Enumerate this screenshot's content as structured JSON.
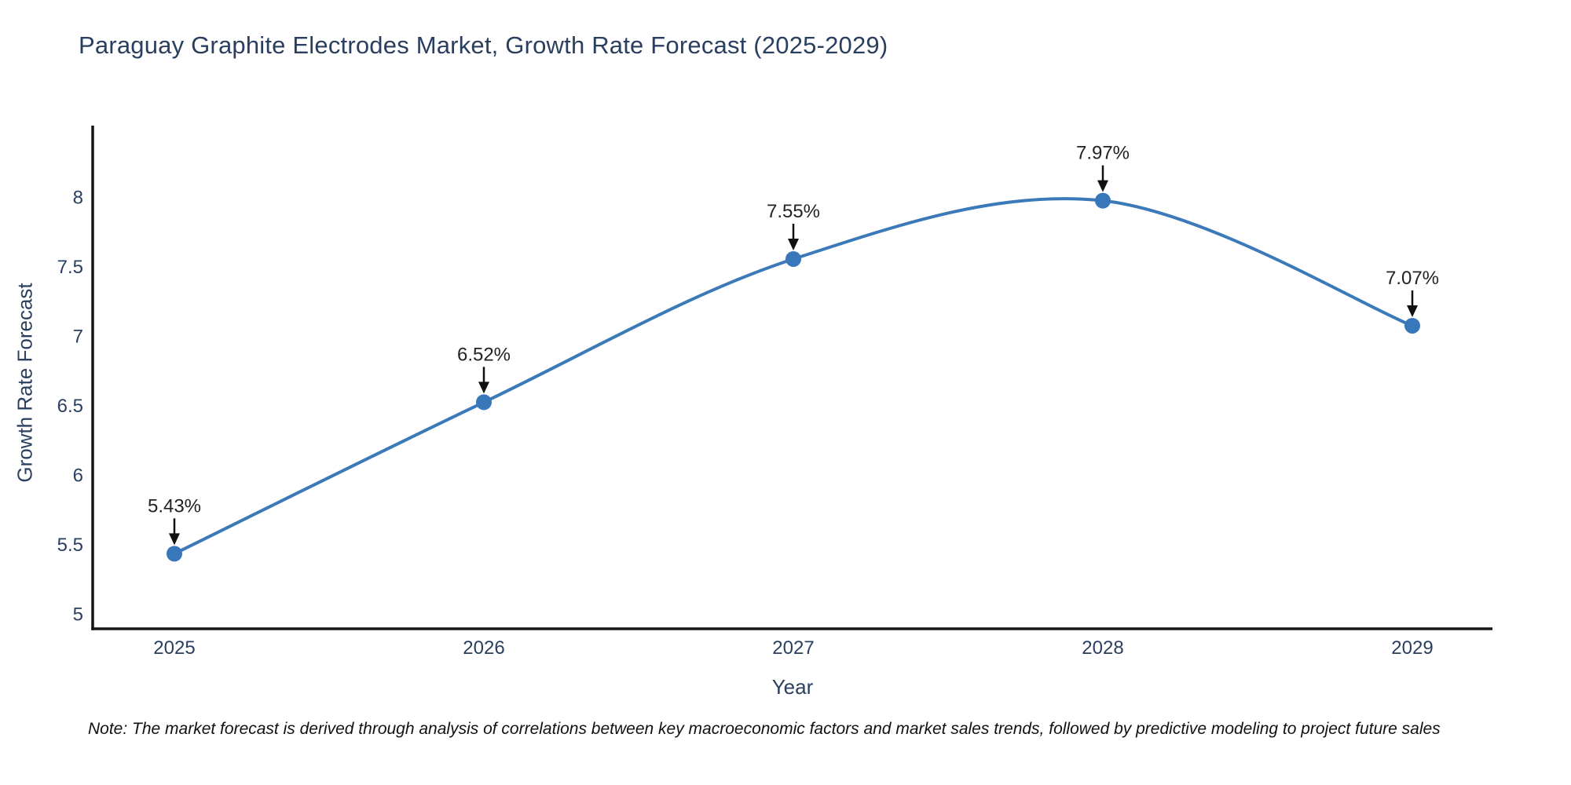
{
  "note": "Note: The market forecast is derived through analysis of correlations between key macroeconomic factors and market sales trends, followed by predictive modeling to project future sales",
  "colors": {
    "series_line": "#3b79b8",
    "marker_fill": "#3878ba",
    "axis_line": "#151515",
    "axis_text": "#2a3f5f",
    "annotation_text": "#222222",
    "annotation_arrow": "#111111",
    "background": "#ffffff"
  },
  "chart_data": {
    "type": "line",
    "title": "Paraguay Graphite Electrodes Market, Growth Rate Forecast (2025-2029)",
    "xlabel": "Year",
    "ylabel": "Growth Rate Forecast",
    "categories": [
      "2025",
      "2026",
      "2027",
      "2028",
      "2029"
    ],
    "values": [
      5.43,
      6.52,
      7.55,
      7.97,
      7.07
    ],
    "point_labels": [
      "5.43%",
      "6.52%",
      "7.55%",
      "7.97%",
      "7.07%"
    ],
    "yticks": [
      "5",
      "5.5",
      "6",
      "6.5",
      "7",
      "7.5",
      "8"
    ],
    "ytick_values": [
      5,
      5.5,
      6,
      6.5,
      7,
      7.5,
      8
    ],
    "ylim": [
      4.89,
      8.51
    ],
    "grid": false,
    "legend": "none",
    "line_shape": "spline",
    "annotations_arrow": true
  }
}
